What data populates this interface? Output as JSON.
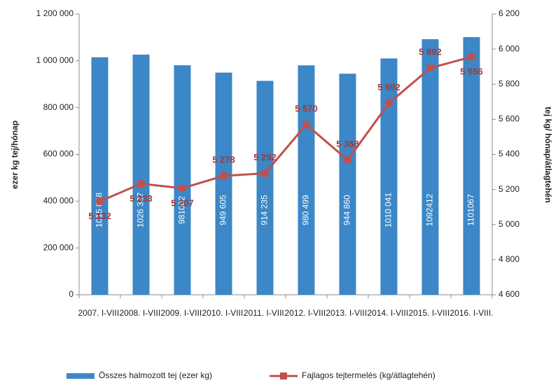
{
  "chart_data": {
    "type": "combo",
    "categories": [
      "2007. I-VIII.",
      "2008. I-VIII.",
      "2009. I-VIII.",
      "2010. I-VIII.",
      "2011. I-VIII.",
      "2012. I-VIII.",
      "2013. I-VIII.",
      "2014. I-VIII.",
      "2015. I-VIII.",
      "2016. I-VIII."
    ],
    "series": [
      {
        "name": "Összes halmozott  tej (ezer kg)",
        "type": "bar",
        "color": "#3b87c7",
        "values": [
          1015048,
          1026337,
          981002,
          949605,
          914235,
          980499,
          944860,
          1010041,
          1092412,
          1101067
        ],
        "value_labels": [
          "1015 048",
          "1026 337",
          "981002",
          "949 605",
          "914 235",
          "980 499",
          "944 860",
          "1010 041",
          "1092412",
          "1101067"
        ]
      },
      {
        "name": "Fajlagos tejtermelés (kg/átlagtehén)",
        "type": "line",
        "axis": "y2",
        "color": "#c0504d",
        "values": [
          5132,
          5233,
          5207,
          5278,
          5292,
          5570,
          5368,
          5692,
          5892,
          5956
        ],
        "value_labels": [
          "5 132",
          "5 233",
          "5 207",
          "5 278",
          "5 292",
          "5 570",
          "5 368",
          "5 692",
          "5 892",
          "5 956"
        ]
      }
    ],
    "ylabel": "ezer kg tej/hónap",
    "y2label": "tej kg/ hónap/átlagtehén",
    "ylim": [
      0,
      1200000
    ],
    "yticks": [
      0,
      {
        "value": 200000,
        "label": "200 000"
      },
      {
        "value": 400000,
        "label": "400 000"
      },
      {
        "value": 600000,
        "label": "600 000"
      },
      {
        "value": 800000,
        "label": "800 000"
      },
      {
        "value": 1000000,
        "label": "1 000 000"
      },
      {
        "value": 1200000,
        "label": "1 200 000"
      }
    ],
    "y2lim": [
      4600,
      6200
    ],
    "y2ticks": [
      {
        "value": 4600,
        "label": "4 600"
      },
      {
        "value": 4800,
        "label": "4 800"
      },
      {
        "value": 5000,
        "label": "5 000"
      },
      {
        "value": 5200,
        "label": "5 200"
      },
      {
        "value": 5400,
        "label": "5 400"
      },
      {
        "value": 5600,
        "label": "5 600"
      },
      {
        "value": 5800,
        "label": "5 800"
      },
      {
        "value": 6000,
        "label": "6 000"
      },
      {
        "value": 6200,
        "label": "6 200"
      }
    ],
    "grid": false,
    "legend": "bottom"
  }
}
